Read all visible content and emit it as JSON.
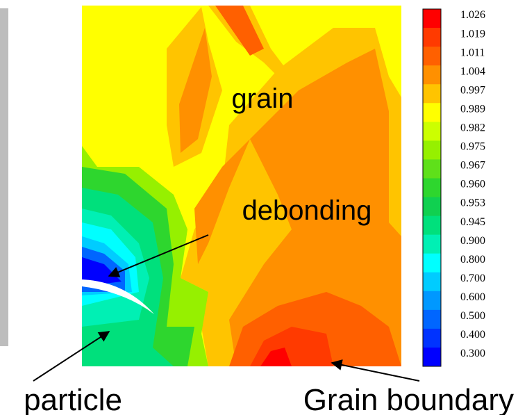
{
  "chart_data": {
    "type": "contour",
    "colorbar": {
      "levels": [
        1.026,
        1.019,
        1.011,
        1.004,
        0.997,
        0.989,
        0.982,
        0.975,
        0.967,
        {
          "value": 0.96,
          "label": "0.960"
        },
        0.953,
        0.945,
        {
          "value": 0.9,
          "label": "0.900"
        },
        {
          "value": 0.8,
          "label": "0.800"
        },
        {
          "value": 0.7,
          "label": "0.700"
        },
        {
          "value": 0.6,
          "label": "0.600"
        },
        {
          "value": 0.5,
          "label": "0.500"
        },
        {
          "value": 0.4,
          "label": "0.400"
        },
        {
          "value": 0.3,
          "label": "0.300"
        }
      ],
      "colors": [
        "#ff0000",
        "#ff3a00",
        "#ff6000",
        "#ff9000",
        "#ffc400",
        "#ffff00",
        "#ccff00",
        "#96f000",
        "#5fe01a",
        "#2ed62e",
        "#10d050",
        "#00e07c",
        "#00f0b4",
        "#00ffff",
        "#00ccff",
        "#0098ff",
        "#0066ff",
        "#0033ff",
        "#0000ff"
      ]
    },
    "annotations": [
      "grain",
      "debonding",
      "particle",
      "Grain boundary"
    ]
  }
}
